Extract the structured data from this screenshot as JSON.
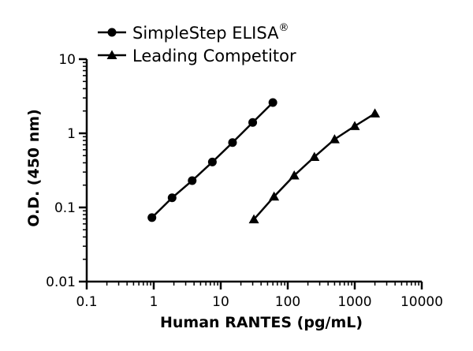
{
  "chart_data": {
    "type": "line",
    "title": "",
    "xlabel": "Human RANTES (pg/mL)",
    "ylabel": "O.D. (450 nm)",
    "xscale": "log",
    "yscale": "log",
    "xlim": [
      0.1,
      10000
    ],
    "ylim": [
      0.01,
      10
    ],
    "x_ticks": [
      0.1,
      1,
      10,
      100,
      1000,
      10000
    ],
    "x_tick_labels": [
      "0.1",
      "1",
      "10",
      "100",
      "1000",
      "10000"
    ],
    "y_ticks": [
      0.01,
      0.1,
      1,
      10
    ],
    "y_tick_labels": [
      "0.01",
      "0.1",
      "1",
      "10"
    ],
    "grid": false,
    "legend_position": "top-left",
    "series": [
      {
        "name": "SimpleStep ELISA",
        "name_superscript": "®",
        "marker": "circle",
        "color": "#000000",
        "x": [
          0.94,
          1.88,
          3.75,
          7.5,
          15,
          30,
          60
        ],
        "y": [
          0.073,
          0.135,
          0.23,
          0.41,
          0.75,
          1.4,
          2.6
        ]
      },
      {
        "name": "Leading Competitor",
        "marker": "triangle",
        "color": "#000000",
        "x": [
          31.25,
          62.5,
          125,
          250,
          500,
          1000,
          2000
        ],
        "y": [
          0.069,
          0.14,
          0.27,
          0.48,
          0.83,
          1.25,
          1.85
        ]
      }
    ]
  }
}
